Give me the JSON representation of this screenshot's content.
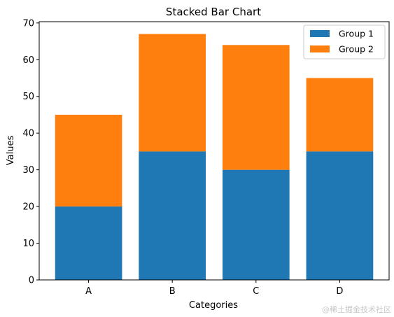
{
  "chart_data": {
    "type": "bar",
    "stacked": true,
    "title": "Stacked Bar Chart",
    "xlabel": "Categories",
    "ylabel": "Values",
    "categories": [
      "A",
      "B",
      "C",
      "D"
    ],
    "series": [
      {
        "name": "Group 1",
        "values": [
          20,
          35,
          30,
          35
        ],
        "color": "#1f77b4"
      },
      {
        "name": "Group 2",
        "values": [
          25,
          32,
          34,
          20
        ],
        "color": "#ff7f0e"
      }
    ],
    "ylim": [
      0,
      70.35
    ],
    "yticks": [
      0,
      10,
      20,
      30,
      40,
      50,
      60,
      70
    ],
    "grid": false,
    "legend_position": "top-right"
  },
  "watermark": "@稀土掘金技术社区"
}
